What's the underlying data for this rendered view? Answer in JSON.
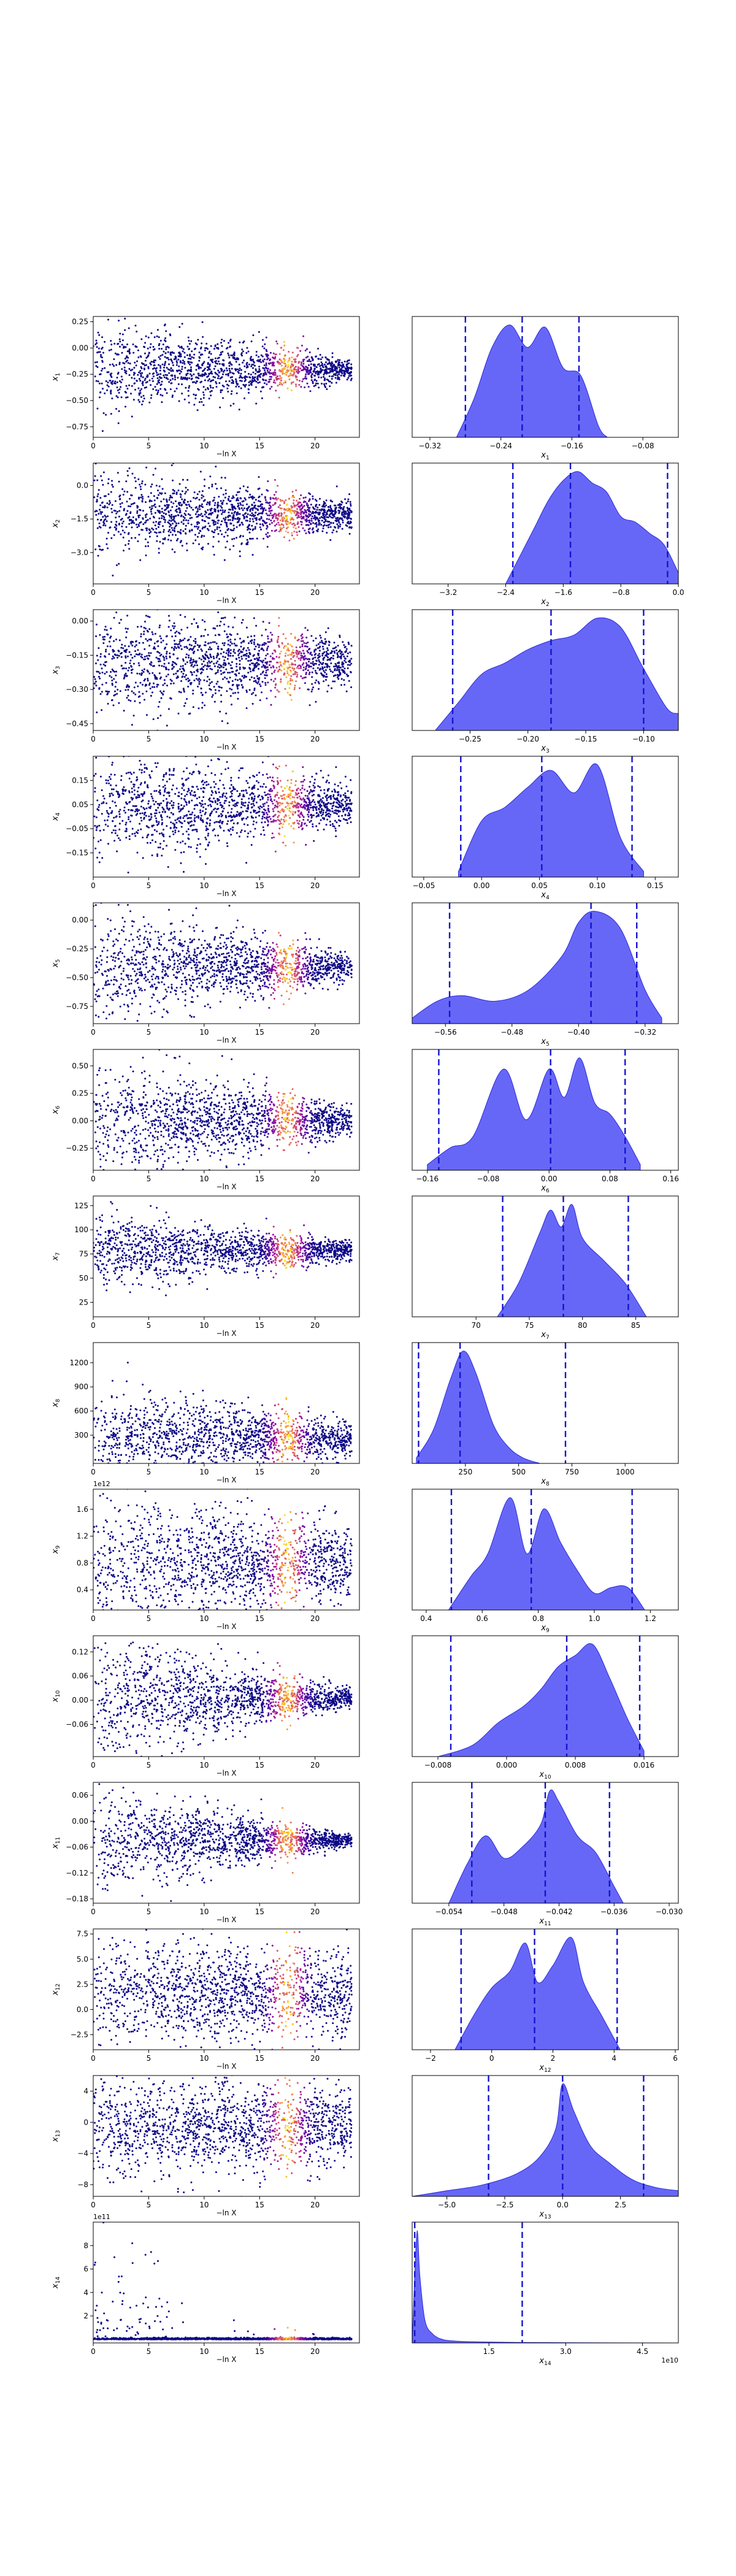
{
  "figure_title": "",
  "chart_data": [
    {
      "type": "scatter",
      "panel": 1,
      "xlabel": "−ln X",
      "ylabel": "x1",
      "xlim": [
        0,
        24
      ],
      "ylim": [
        -0.85,
        0.3
      ],
      "xticks": [
        0,
        5,
        10,
        15,
        20
      ],
      "yticks": [
        0.25,
        0.0,
        -0.25,
        -0.5,
        -0.75
      ],
      "ytick_labels": [
        "0.25",
        "0.00",
        "−0.25",
        "−0.50",
        "−0.75"
      ],
      "offset_label": "",
      "center": -0.2,
      "spread_start": 0.22,
      "spread_end": 0.05,
      "x_max": 23.3,
      "colormap": "plasma, coloured by posterior weight, peak near −ln X ≈ 17.5"
    },
    {
      "type": "area",
      "panel": 1,
      "xlabel": "x1",
      "xlim": [
        -0.34,
        -0.04
      ],
      "xticks": [
        -0.32,
        -0.24,
        -0.16,
        -0.08
      ],
      "xtick_labels": [
        "−0.32",
        "−0.24",
        "−0.16",
        "−0.08"
      ],
      "x": [
        -0.29,
        -0.27,
        -0.25,
        -0.23,
        -0.21,
        -0.19,
        -0.17,
        -0.15,
        -0.13,
        -0.12
      ],
      "density": [
        0.0,
        0.35,
        0.8,
        1.0,
        0.8,
        0.98,
        0.62,
        0.55,
        0.1,
        0.0
      ],
      "quantile_lines": [
        -0.28,
        -0.216,
        -0.152
      ]
    },
    {
      "type": "scatter",
      "panel": 2,
      "xlabel": "−ln X",
      "ylabel": "x2",
      "xlim": [
        0,
        24
      ],
      "ylim": [
        -4.4,
        1.0
      ],
      "xticks": [
        0,
        5,
        10,
        15,
        20
      ],
      "yticks": [
        0.0,
        -1.5,
        -3.0
      ],
      "ytick_labels": [
        "0.0",
        "−1.5",
        "−3.0"
      ],
      "offset_label": "",
      "center": -1.3,
      "spread_start": 1.0,
      "spread_end": 0.35,
      "x_max": 23.3,
      "colormap": "plasma"
    },
    {
      "type": "area",
      "panel": 2,
      "xlabel": "x2",
      "xlim": [
        -3.7,
        0.0
      ],
      "xticks": [
        -3.2,
        -2.4,
        -1.6,
        -0.8,
        0.0
      ],
      "xtick_labels": [
        "−3.2",
        "−2.4",
        "−1.6",
        "−0.8",
        "0.0"
      ],
      "x": [
        -2.4,
        -2.2,
        -2.0,
        -1.8,
        -1.6,
        -1.4,
        -1.2,
        -1.0,
        -0.8,
        -0.6,
        -0.4,
        -0.2,
        0.0
      ],
      "density": [
        0.0,
        0.25,
        0.5,
        0.75,
        0.92,
        1.0,
        0.9,
        0.82,
        0.6,
        0.55,
        0.45,
        0.35,
        0.1
      ],
      "quantile_lines": [
        -2.3,
        -1.5,
        -0.15
      ]
    },
    {
      "type": "scatter",
      "panel": 3,
      "xlabel": "−ln X",
      "ylabel": "x3",
      "xlim": [
        0,
        24
      ],
      "ylim": [
        -0.48,
        0.05
      ],
      "xticks": [
        0,
        5,
        10,
        15,
        20
      ],
      "yticks": [
        0.0,
        -0.15,
        -0.3,
        -0.45
      ],
      "ytick_labels": [
        "0.00",
        "−0.15",
        "−0.30",
        "−0.45"
      ],
      "offset_label": "",
      "center": -0.18,
      "spread_start": 0.12,
      "spread_end": 0.05,
      "x_max": 23.3,
      "colormap": "plasma"
    },
    {
      "type": "area",
      "panel": 3,
      "xlabel": "x3",
      "xlim": [
        -0.3,
        -0.07
      ],
      "xticks": [
        -0.25,
        -0.2,
        -0.15,
        -0.1
      ],
      "xtick_labels": [
        "−0.25",
        "−0.20",
        "−0.15",
        "−0.10"
      ],
      "x": [
        -0.28,
        -0.26,
        -0.24,
        -0.22,
        -0.2,
        -0.18,
        -0.16,
        -0.14,
        -0.12,
        -0.1,
        -0.08,
        -0.07
      ],
      "density": [
        0.0,
        0.25,
        0.5,
        0.6,
        0.72,
        0.8,
        0.85,
        1.0,
        0.92,
        0.55,
        0.2,
        0.15
      ],
      "quantile_lines": [
        -0.265,
        -0.18,
        -0.1
      ]
    },
    {
      "type": "scatter",
      "panel": 4,
      "xlabel": "−ln X",
      "ylabel": "x4",
      "xlim": [
        0,
        24
      ],
      "ylim": [
        -0.25,
        0.25
      ],
      "xticks": [
        0,
        5,
        10,
        15,
        20
      ],
      "yticks": [
        0.15,
        0.05,
        -0.05,
        -0.15
      ],
      "ytick_labels": [
        "0.15",
        "0.05",
        "−0.05",
        "−0.15"
      ],
      "offset_label": "",
      "center": 0.05,
      "spread_start": 0.12,
      "spread_end": 0.04,
      "x_max": 23.3,
      "colormap": "plasma"
    },
    {
      "type": "area",
      "panel": 4,
      "xlabel": "x4",
      "xlim": [
        -0.06,
        0.17
      ],
      "xticks": [
        -0.05,
        0.0,
        0.05,
        0.1,
        0.15
      ],
      "xtick_labels": [
        "−0.05",
        "0.00",
        "0.05",
        "0.10",
        "0.15"
      ],
      "x": [
        -0.02,
        0.0,
        0.02,
        0.04,
        0.06,
        0.08,
        0.1,
        0.12,
        0.14
      ],
      "density": [
        0.05,
        0.5,
        0.62,
        0.8,
        0.95,
        0.75,
        1.0,
        0.35,
        0.05
      ],
      "quantile_lines": [
        -0.018,
        0.052,
        0.13
      ]
    },
    {
      "type": "scatter",
      "panel": 5,
      "xlabel": "−ln X",
      "ylabel": "x5",
      "xlim": [
        0,
        24
      ],
      "ylim": [
        -0.9,
        0.15
      ],
      "xticks": [
        0,
        5,
        10,
        15,
        20
      ],
      "yticks": [
        0.0,
        -0.25,
        -0.5,
        -0.75
      ],
      "ytick_labels": [
        "0.00",
        "−0.25",
        "−0.50",
        "−0.75"
      ],
      "offset_label": "",
      "center": -0.4,
      "spread_start": 0.25,
      "spread_end": 0.06,
      "x_max": 23.3,
      "colormap": "plasma"
    },
    {
      "type": "area",
      "panel": 5,
      "xlabel": "x5",
      "xlim": [
        -0.6,
        -0.28
      ],
      "xticks": [
        -0.56,
        -0.48,
        -0.4,
        -0.32
      ],
      "xtick_labels": [
        "−0.56",
        "−0.48",
        "−0.40",
        "−0.32"
      ],
      "x": [
        -0.6,
        -0.57,
        -0.54,
        -0.5,
        -0.46,
        -0.42,
        -0.4,
        -0.38,
        -0.35,
        -0.32,
        -0.3
      ],
      "density": [
        0.05,
        0.2,
        0.25,
        0.2,
        0.3,
        0.6,
        0.9,
        1.0,
        0.85,
        0.3,
        0.05
      ],
      "quantile_lines": [
        -0.555,
        -0.385,
        -0.33
      ]
    },
    {
      "type": "scatter",
      "panel": 6,
      "xlabel": "−ln X",
      "ylabel": "x6",
      "xlim": [
        0,
        24
      ],
      "ylim": [
        -0.45,
        0.65
      ],
      "xticks": [
        0,
        5,
        10,
        15,
        20
      ],
      "yticks": [
        0.5,
        0.25,
        0.0,
        -0.25
      ],
      "ytick_labels": [
        "0.50",
        "0.25",
        "0.00",
        "−0.25"
      ],
      "offset_label": "",
      "center": 0.0,
      "spread_start": 0.3,
      "spread_end": 0.06,
      "x_max": 23.3,
      "colormap": "plasma"
    },
    {
      "type": "area",
      "panel": 6,
      "xlabel": "x6",
      "xlim": [
        -0.18,
        0.17
      ],
      "xticks": [
        -0.16,
        -0.08,
        0.0,
        0.08,
        0.16
      ],
      "xtick_labels": [
        "−0.16",
        "−0.08",
        "0.00",
        "0.08",
        "0.16"
      ],
      "x": [
        -0.16,
        -0.13,
        -0.1,
        -0.06,
        -0.03,
        0.0,
        0.02,
        0.04,
        0.06,
        0.08,
        0.1,
        0.12
      ],
      "density": [
        0.05,
        0.2,
        0.3,
        0.9,
        0.45,
        0.9,
        0.65,
        1.0,
        0.6,
        0.5,
        0.3,
        0.05
      ],
      "quantile_lines": [
        -0.145,
        0.002,
        0.1
      ]
    },
    {
      "type": "scatter",
      "panel": 7,
      "xlabel": "−ln X",
      "ylabel": "x7",
      "xlim": [
        0,
        24
      ],
      "ylim": [
        10,
        135
      ],
      "xticks": [
        0,
        5,
        10,
        15,
        20
      ],
      "yticks": [
        125,
        100,
        75,
        50,
        25
      ],
      "ytick_labels": [
        "125",
        "100",
        "75",
        "50",
        "25"
      ],
      "offset_label": "",
      "center": 78,
      "spread_start": 20,
      "spread_end": 5,
      "x_max": 23.3,
      "colormap": "plasma"
    },
    {
      "type": "area",
      "panel": 7,
      "xlabel": "x7",
      "xlim": [
        64,
        89
      ],
      "xticks": [
        70,
        75,
        80,
        85
      ],
      "xtick_labels": [
        "70",
        "75",
        "80",
        "85"
      ],
      "x": [
        72,
        74,
        76,
        77,
        78,
        79,
        80,
        82,
        84,
        86
      ],
      "density": [
        0.0,
        0.3,
        0.75,
        0.95,
        0.8,
        1.0,
        0.7,
        0.5,
        0.3,
        0.0
      ],
      "quantile_lines": [
        72.5,
        78.2,
        84.3
      ]
    },
    {
      "type": "scatter",
      "panel": 8,
      "xlabel": "−ln X",
      "ylabel": "x8",
      "xlim": [
        0,
        24
      ],
      "ylim": [
        -50,
        1450
      ],
      "xticks": [
        0,
        5,
        10,
        15,
        20
      ],
      "yticks": [
        1200,
        900,
        600,
        300
      ],
      "ytick_labels": [
        "1200",
        "900",
        "600",
        "300"
      ],
      "offset_label": "",
      "center": 260,
      "spread_start": 300,
      "spread_end": 120,
      "x_max": 23.3,
      "colormap": "plasma"
    },
    {
      "type": "area",
      "panel": 8,
      "xlabel": "x8",
      "xlim": [
        0,
        1250
      ],
      "xticks": [
        250,
        500,
        750,
        1000
      ],
      "xtick_labels": [
        "250",
        "500",
        "750",
        "1000"
      ],
      "x": [
        20,
        100,
        180,
        240,
        300,
        380,
        450,
        520,
        600
      ],
      "density": [
        0.05,
        0.3,
        0.75,
        1.0,
        0.8,
        0.35,
        0.15,
        0.05,
        0.0
      ],
      "quantile_lines": [
        30,
        225,
        720
      ]
    },
    {
      "type": "scatter",
      "panel": 9,
      "xlabel": "−ln X",
      "ylabel": "x9",
      "xlim": [
        0,
        24
      ],
      "ylim": [
        0.1,
        1.9
      ],
      "xticks": [
        0,
        5,
        10,
        15,
        20
      ],
      "yticks": [
        1.6,
        1.2,
        0.8,
        0.4
      ],
      "ytick_labels": [
        "1.6",
        "1.2",
        "0.8",
        "0.4"
      ],
      "offset_label": "1e12",
      "center": 0.8,
      "spread_start": 0.5,
      "spread_end": 0.3,
      "x_max": 23.3,
      "colormap": "plasma"
    },
    {
      "type": "area",
      "panel": 9,
      "xlabel": "x9",
      "xlim": [
        0.35,
        1.3
      ],
      "xticks": [
        0.4,
        0.6,
        0.8,
        1.0,
        1.2
      ],
      "xtick_labels": [
        "0.4",
        "0.6",
        "0.8",
        "1.0",
        "1.2"
      ],
      "x": [
        0.48,
        0.56,
        0.62,
        0.7,
        0.76,
        0.82,
        0.88,
        0.94,
        1.0,
        1.06,
        1.12,
        1.18
      ],
      "density": [
        0.0,
        0.3,
        0.5,
        1.0,
        0.5,
        0.9,
        0.6,
        0.35,
        0.15,
        0.2,
        0.2,
        0.0
      ],
      "quantile_lines": [
        0.49,
        0.775,
        1.135
      ]
    },
    {
      "type": "scatter",
      "panel": 10,
      "xlabel": "−ln X",
      "ylabel": "x10",
      "xlim": [
        0,
        24
      ],
      "ylim": [
        -0.14,
        0.16
      ],
      "xticks": [
        0,
        5,
        10,
        15,
        20
      ],
      "yticks": [
        0.12,
        0.06,
        0.0,
        -0.06
      ],
      "ytick_labels": [
        "0.12",
        "0.06",
        "0.00",
        "−0.06"
      ],
      "offset_label": "",
      "center": 0.005,
      "spread_start": 0.08,
      "spread_end": 0.01,
      "x_max": 23.3,
      "colormap": "plasma"
    },
    {
      "type": "area",
      "panel": 10,
      "xlabel": "x10",
      "xlim": [
        -0.011,
        0.02
      ],
      "xticks": [
        -0.008,
        0.0,
        0.008,
        0.016
      ],
      "xtick_labels": [
        "−0.008",
        "0.000",
        "0.008",
        "0.016"
      ],
      "x": [
        -0.008,
        -0.004,
        -0.001,
        0.002,
        0.004,
        0.006,
        0.008,
        0.01,
        0.012,
        0.014,
        0.016
      ],
      "density": [
        0.0,
        0.1,
        0.3,
        0.45,
        0.6,
        0.8,
        0.9,
        1.0,
        0.7,
        0.35,
        0.05
      ],
      "quantile_lines": [
        -0.0065,
        0.007,
        0.0155
      ]
    },
    {
      "type": "scatter",
      "panel": 11,
      "xlabel": "−ln X",
      "ylabel": "x11",
      "xlim": [
        0,
        24
      ],
      "ylim": [
        -0.19,
        0.09
      ],
      "xticks": [
        0,
        5,
        10,
        15,
        20
      ],
      "yticks": [
        0.06,
        0.0,
        -0.06,
        -0.12,
        -0.18
      ],
      "ytick_labels": [
        "0.06",
        "0.00",
        "−0.06",
        "−0.12",
        "−0.18"
      ],
      "offset_label": "",
      "center": -0.044,
      "spread_start": 0.06,
      "spread_end": 0.006,
      "x_max": 23.3,
      "colormap": "plasma"
    },
    {
      "type": "area",
      "panel": 11,
      "xlabel": "x11",
      "xlim": [
        -0.058,
        -0.029
      ],
      "xticks": [
        -0.054,
        -0.048,
        -0.042,
        -0.036,
        -0.03
      ],
      "xtick_labels": [
        "−0.054",
        "−0.048",
        "−0.042",
        "−0.036",
        "−0.030"
      ],
      "x": [
        -0.054,
        -0.052,
        -0.05,
        -0.048,
        -0.046,
        -0.044,
        -0.043,
        -0.042,
        -0.04,
        -0.038,
        -0.036,
        -0.035
      ],
      "density": [
        0.0,
        0.35,
        0.6,
        0.4,
        0.5,
        0.7,
        1.0,
        0.9,
        0.6,
        0.45,
        0.15,
        0.0
      ],
      "quantile_lines": [
        -0.0515,
        -0.0435,
        -0.0365
      ]
    },
    {
      "type": "scatter",
      "panel": 12,
      "xlabel": "−ln X",
      "ylabel": "x12",
      "xlim": [
        0,
        24
      ],
      "ylim": [
        -4,
        8
      ],
      "xticks": [
        0,
        5,
        10,
        15,
        20
      ],
      "yticks": [
        7.5,
        5.0,
        2.5,
        0.0,
        -2.5
      ],
      "ytick_labels": [
        "7.5",
        "5.0",
        "2.5",
        "0.0",
        "−2.5"
      ],
      "offset_label": "",
      "center": 1.5,
      "spread_start": 2.8,
      "spread_end": 2.2,
      "x_max": 23.3,
      "colormap": "plasma"
    },
    {
      "type": "area",
      "panel": 12,
      "xlabel": "x12",
      "xlim": [
        -2.6,
        6.1
      ],
      "xticks": [
        -2,
        0,
        2,
        4,
        6
      ],
      "xtick_labels": [
        "−2",
        "0",
        "2",
        "4",
        "6"
      ],
      "x": [
        -1.2,
        -0.6,
        0.0,
        0.6,
        1.1,
        1.5,
        2.0,
        2.6,
        3.0,
        3.6,
        4.2
      ],
      "density": [
        0.0,
        0.3,
        0.55,
        0.7,
        0.95,
        0.6,
        0.75,
        1.0,
        0.6,
        0.3,
        0.0
      ],
      "quantile_lines": [
        -1.0,
        1.4,
        4.1
      ]
    },
    {
      "type": "scatter",
      "panel": 13,
      "xlabel": "−ln X",
      "ylabel": "x13",
      "xlim": [
        0,
        24
      ],
      "ylim": [
        -9.5,
        6.0
      ],
      "xticks": [
        0,
        5,
        10,
        15,
        20
      ],
      "yticks": [
        4,
        0,
        -4,
        -8
      ],
      "ytick_labels": [
        "4",
        "0",
        "−4",
        "−8"
      ],
      "offset_label": "",
      "center": -0.5,
      "spread_start": 3.5,
      "spread_end": 2.5,
      "x_max": 23.3,
      "colormap": "plasma"
    },
    {
      "type": "area",
      "panel": 13,
      "xlabel": "x13",
      "xlim": [
        -6.5,
        5.0
      ],
      "xticks": [
        -5.0,
        -2.5,
        0.0,
        2.5
      ],
      "xtick_labels": [
        "−5.0",
        "−2.5",
        "0.0",
        "2.5"
      ],
      "x": [
        -6.5,
        -5.0,
        -3.5,
        -2.0,
        -1.0,
        -0.3,
        0.0,
        0.5,
        1.2,
        2.0,
        3.0,
        4.0,
        5.0
      ],
      "density": [
        0.0,
        0.05,
        0.1,
        0.2,
        0.35,
        0.6,
        1.0,
        0.75,
        0.45,
        0.3,
        0.15,
        0.08,
        0.05
      ],
      "quantile_lines": [
        -3.2,
        0.0,
        3.5
      ]
    },
    {
      "type": "scatter",
      "panel": 14,
      "xlabel": "−ln X",
      "ylabel": "x14",
      "xlim": [
        0,
        24
      ],
      "ylim": [
        -0.3,
        10.0
      ],
      "xticks": [
        0,
        5,
        10,
        15,
        20
      ],
      "yticks": [
        8,
        6,
        4,
        2
      ],
      "ytick_labels": [
        "8",
        "6",
        "4",
        "2"
      ],
      "offset_label": "1e11",
      "center": 0.2,
      "spread_start": 2.5,
      "spread_end": 0.05,
      "x_max": 23.3,
      "colormap": "plasma, most points clustered near zero"
    },
    {
      "type": "area",
      "panel": 14,
      "xlabel": "x14",
      "xlim": [
        0.0,
        5.2
      ],
      "xticks": [
        1.5,
        3.0,
        4.5
      ],
      "xtick_labels": [
        "1.5",
        "3.0",
        "4.5"
      ],
      "offset_label": "1e10",
      "x": [
        0.0,
        0.05,
        0.1,
        0.15,
        0.25,
        0.4,
        0.6,
        0.9,
        1.3,
        2.0,
        3.0,
        5.2
      ],
      "density": [
        0.0,
        0.6,
        1.0,
        0.6,
        0.2,
        0.08,
        0.03,
        0.015,
        0.01,
        0.005,
        0.002,
        0.0
      ],
      "quantile_lines": [
        0.05,
        2.15
      ]
    }
  ]
}
